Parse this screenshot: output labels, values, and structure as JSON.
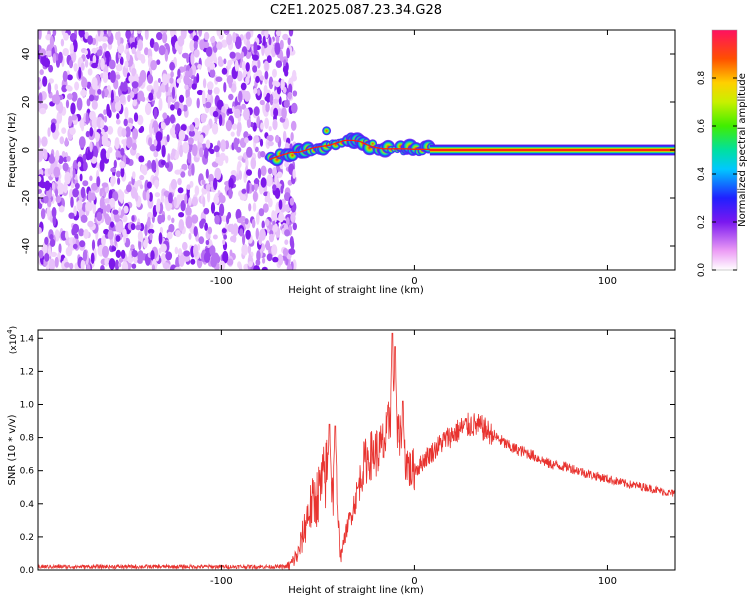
{
  "figure": {
    "title": "C2E1.2025.087.23.34.G28"
  },
  "chart_data": [
    {
      "type": "heatmap",
      "xlabel": "Height of straight line (km)",
      "ylabel": "Frequency (Hz)",
      "xlim": [
        -195,
        135
      ],
      "ylim": [
        -50,
        50
      ],
      "xticks": [
        -100,
        0,
        100
      ],
      "yticks": [
        -40,
        -20,
        0,
        20,
        40
      ],
      "noise_region_x": [
        -195,
        -65
      ],
      "ridge": {
        "x": [
          -75,
          -72,
          -68,
          -64,
          -60,
          -56,
          -52,
          -48,
          -44,
          -40,
          -36,
          -32,
          -28,
          -24,
          -20,
          -16,
          -12,
          -8,
          -4,
          0,
          4,
          8,
          10,
          20,
          40,
          60,
          80,
          100,
          120,
          135
        ],
        "y": [
          -4,
          -3,
          -2,
          -1,
          -1,
          0,
          1,
          1.5,
          2,
          3,
          4,
          4,
          3.5,
          2,
          1,
          0.5,
          0.5,
          0.5,
          0.5,
          0.3,
          0.3,
          0.2,
          0,
          0,
          0,
          0,
          0,
          0,
          0,
          0
        ]
      },
      "colorbar": {
        "label": "Normalized spectral amplitude",
        "range": [
          0,
          1
        ],
        "ticks": [
          0.0,
          0.2,
          0.4,
          0.6,
          0.8
        ],
        "tick_labels": [
          "0.0",
          "0.2",
          "0.4",
          "0.6",
          "0.8"
        ]
      },
      "grid": false
    },
    {
      "type": "line",
      "xlabel": "Height of straight line (km)",
      "ylabel": "SNR (10 * v/v)",
      "y_multiplier": "(x10",
      "y_multiplier_exp": "4",
      "y_multiplier_close": ")",
      "xlim": [
        -195,
        135
      ],
      "ylim": [
        0,
        1.45
      ],
      "xticks": [
        -100,
        0,
        100
      ],
      "yticks": [
        0.0,
        0.2,
        0.4,
        0.6,
        0.8,
        1.0,
        1.2,
        1.4
      ],
      "ytick_labels": [
        "0.0",
        "0.2",
        "0.4",
        "0.6",
        "0.8",
        "1.0",
        "1.2",
        "1.4"
      ],
      "series": [
        {
          "color": "#e8332f",
          "envelope_x": [
            -195,
            -65,
            -60,
            -55,
            -50,
            -45,
            -42,
            -38,
            -35,
            -30,
            -26,
            -22,
            -18,
            -14,
            -12,
            -10,
            -6,
            -2,
            2,
            6,
            10,
            15,
            20,
            25,
            30,
            35,
            40,
            45,
            50,
            60,
            70,
            80,
            90,
            100,
            110,
            120,
            130,
            135
          ],
          "envelope_y": [
            0.02,
            0.02,
            0.1,
            0.35,
            0.45,
            0.6,
            0.5,
            0.1,
            0.25,
            0.45,
            0.65,
            0.7,
            0.72,
            0.8,
            1.05,
            0.85,
            0.72,
            0.6,
            0.62,
            0.68,
            0.72,
            0.78,
            0.82,
            0.86,
            0.88,
            0.86,
            0.82,
            0.78,
            0.74,
            0.7,
            0.64,
            0.62,
            0.58,
            0.55,
            0.52,
            0.5,
            0.47,
            0.46
          ],
          "peaks_x": [
            -44,
            -41,
            -11.5,
            -10,
            -6
          ],
          "peaks_y": [
            0.88,
            0.87,
            1.43,
            1.35,
            1.02
          ]
        }
      ]
    }
  ]
}
